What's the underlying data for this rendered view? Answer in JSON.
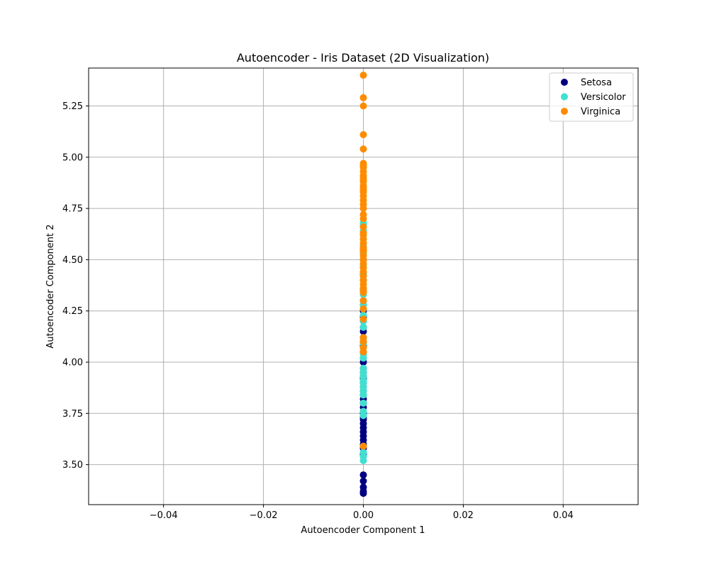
{
  "chart_data": {
    "type": "scatter",
    "title": "Autoencoder - Iris Dataset (2D Visualization)",
    "xlabel": "Autoencoder Component 1",
    "ylabel": "Autoencoder Component 2",
    "xlim": [
      -0.055,
      0.055
    ],
    "ylim": [
      3.305,
      5.435
    ],
    "xticks": [
      -0.04,
      -0.02,
      0.0,
      0.02,
      0.04
    ],
    "xtick_labels": [
      "−0.04",
      "−0.02",
      "0.00",
      "0.02",
      "0.04"
    ],
    "yticks": [
      3.5,
      3.75,
      4.0,
      4.25,
      4.5,
      4.75,
      5.0,
      5.25
    ],
    "ytick_labels": [
      "3.50",
      "3.75",
      "4.00",
      "4.25",
      "4.50",
      "4.75",
      "5.00",
      "5.25"
    ],
    "grid": true,
    "legend_position": "top-right",
    "series": [
      {
        "name": "Setosa",
        "color": "#000080",
        "x": [
          0,
          0,
          0,
          0,
          0,
          0,
          0,
          0,
          0,
          0,
          0,
          0,
          0,
          0,
          0,
          0,
          0,
          0,
          0,
          0,
          0,
          0,
          0,
          0,
          0,
          0,
          0,
          0,
          0,
          0,
          0,
          0,
          0,
          0,
          0,
          0,
          0,
          0,
          0,
          0,
          0,
          0,
          0,
          0,
          0
        ],
        "y": [
          3.36,
          3.37,
          3.39,
          3.42,
          3.45,
          3.55,
          3.58,
          3.6,
          3.62,
          3.64,
          3.66,
          3.68,
          3.7,
          3.72,
          3.73,
          3.75,
          3.78,
          3.8,
          3.82,
          3.84,
          3.86,
          3.88,
          3.9,
          3.92,
          3.93,
          3.95,
          3.97,
          4.0,
          4.02,
          4.05,
          4.08,
          4.1,
          4.12,
          4.15,
          4.17,
          4.2,
          4.22,
          4.25,
          4.28,
          4.3,
          4.35,
          4.4,
          4.43,
          4.5,
          4.55
        ]
      },
      {
        "name": "Versicolor",
        "color": "#40E0D0",
        "x": [
          0,
          0,
          0,
          0,
          0,
          0,
          0,
          0,
          0,
          0,
          0,
          0,
          0,
          0,
          0,
          0,
          0,
          0,
          0,
          0,
          0,
          0,
          0,
          0,
          0,
          0,
          0,
          0,
          0,
          0,
          0,
          0,
          0,
          0,
          0,
          0,
          0,
          0,
          0,
          0,
          0,
          0
        ],
        "y": [
          3.52,
          3.54,
          3.56,
          3.59,
          3.74,
          3.76,
          3.8,
          3.84,
          3.86,
          3.88,
          3.9,
          3.91,
          3.93,
          3.95,
          3.97,
          4.02,
          4.04,
          4.07,
          4.09,
          4.1,
          4.12,
          4.17,
          4.2,
          4.23,
          4.26,
          4.28,
          4.3,
          4.33,
          4.36,
          4.4,
          4.43,
          4.47,
          4.5,
          4.53,
          4.57,
          4.6,
          4.62,
          4.64,
          4.66,
          4.67,
          4.68,
          4.26
        ]
      },
      {
        "name": "Virginica",
        "color": "#FF8C00",
        "x": [
          0,
          0,
          0,
          0,
          0,
          0,
          0,
          0,
          0,
          0,
          0,
          0,
          0,
          0,
          0,
          0,
          0,
          0,
          0,
          0,
          0,
          0,
          0,
          0,
          0,
          0,
          0,
          0,
          0,
          0,
          0,
          0,
          0,
          0,
          0,
          0,
          0,
          0,
          0,
          0,
          0,
          0,
          0,
          0,
          0,
          0,
          0,
          0,
          0,
          0
        ],
        "y": [
          3.59,
          4.05,
          4.07,
          4.1,
          4.12,
          4.21,
          4.26,
          4.3,
          4.34,
          4.36,
          4.38,
          4.4,
          4.42,
          4.44,
          4.46,
          4.48,
          4.5,
          4.52,
          4.54,
          4.56,
          4.58,
          4.6,
          4.63,
          4.66,
          4.72,
          4.75,
          4.77,
          4.79,
          4.81,
          4.83,
          4.84,
          4.86,
          4.88,
          4.89,
          4.91,
          4.93,
          4.95,
          4.97,
          5.04,
          5.11,
          5.25,
          5.29,
          5.4,
          4.35,
          4.55,
          4.62,
          4.7,
          4.85,
          4.9,
          4.96
        ]
      }
    ]
  }
}
